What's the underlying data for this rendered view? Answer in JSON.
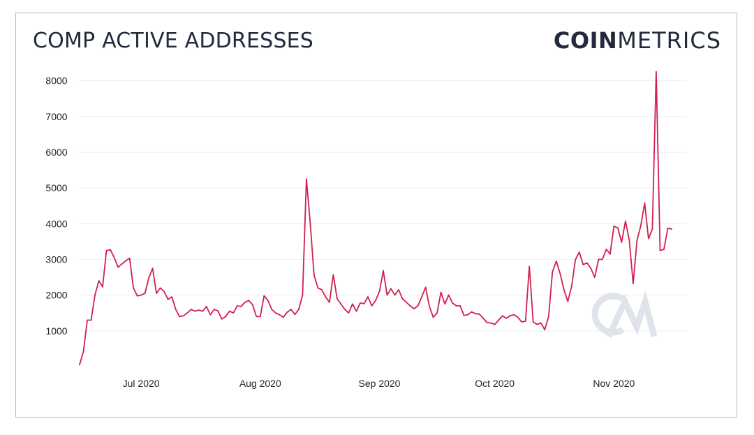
{
  "title": "COMP ACTIVE ADDRESSES",
  "brand": {
    "bold": "COIN",
    "light": "METRICS"
  },
  "watermark_icon": "cm-logo-watermark",
  "colors": {
    "line": "#d21f4e",
    "grid": "#eeeeee",
    "text": "#232a3b",
    "watermark": "#dfe3ea"
  },
  "chart_data": {
    "type": "line",
    "title": "COMP ACTIVE ADDRESSES",
    "xlabel": "",
    "ylabel": "",
    "grid": true,
    "x_start": "2020-06-15",
    "x_end": "2020-11-20",
    "ylim": [
      0,
      8500
    ],
    "y_ticks": [
      1000,
      2000,
      3000,
      4000,
      5000,
      6000,
      7000,
      8000
    ],
    "x_ticks": [
      {
        "label": "Jul 2020",
        "date": "2020-07-01"
      },
      {
        "label": "Aug 2020",
        "date": "2020-08-01"
      },
      {
        "label": "Sep 2020",
        "date": "2020-09-01"
      },
      {
        "label": "Oct 2020",
        "date": "2020-10-01"
      },
      {
        "label": "Nov 2020",
        "date": "2020-11-01"
      }
    ],
    "series": [
      {
        "name": "",
        "points": [
          [
            "2020-06-15",
            50
          ],
          [
            "2020-06-16",
            420
          ],
          [
            "2020-06-17",
            1300
          ],
          [
            "2020-06-18",
            1300
          ],
          [
            "2020-06-19",
            2000
          ],
          [
            "2020-06-20",
            2400
          ],
          [
            "2020-06-21",
            2230
          ],
          [
            "2020-06-22",
            3250
          ],
          [
            "2020-06-23",
            3270
          ],
          [
            "2020-06-24",
            3050
          ],
          [
            "2020-06-25",
            2780
          ],
          [
            "2020-06-26",
            2870
          ],
          [
            "2020-06-27",
            2960
          ],
          [
            "2020-06-28",
            3030
          ],
          [
            "2020-06-29",
            2200
          ],
          [
            "2020-06-30",
            1980
          ],
          [
            "2020-07-01",
            2000
          ],
          [
            "2020-07-02",
            2050
          ],
          [
            "2020-07-03",
            2480
          ],
          [
            "2020-07-04",
            2750
          ],
          [
            "2020-07-05",
            2050
          ],
          [
            "2020-07-06",
            2200
          ],
          [
            "2020-07-07",
            2100
          ],
          [
            "2020-07-08",
            1880
          ],
          [
            "2020-07-09",
            1950
          ],
          [
            "2020-07-10",
            1600
          ],
          [
            "2020-07-11",
            1400
          ],
          [
            "2020-07-12",
            1420
          ],
          [
            "2020-07-13",
            1500
          ],
          [
            "2020-07-14",
            1600
          ],
          [
            "2020-07-15",
            1550
          ],
          [
            "2020-07-16",
            1580
          ],
          [
            "2020-07-17",
            1550
          ],
          [
            "2020-07-18",
            1680
          ],
          [
            "2020-07-19",
            1450
          ],
          [
            "2020-07-20",
            1600
          ],
          [
            "2020-07-21",
            1560
          ],
          [
            "2020-07-22",
            1330
          ],
          [
            "2020-07-23",
            1400
          ],
          [
            "2020-07-24",
            1550
          ],
          [
            "2020-07-25",
            1500
          ],
          [
            "2020-07-26",
            1700
          ],
          [
            "2020-07-27",
            1680
          ],
          [
            "2020-07-28",
            1800
          ],
          [
            "2020-07-29",
            1850
          ],
          [
            "2020-07-30",
            1730
          ],
          [
            "2020-07-31",
            1400
          ],
          [
            "2020-08-01",
            1400
          ],
          [
            "2020-08-02",
            1980
          ],
          [
            "2020-08-03",
            1850
          ],
          [
            "2020-08-04",
            1600
          ],
          [
            "2020-08-05",
            1500
          ],
          [
            "2020-08-06",
            1450
          ],
          [
            "2020-08-07",
            1380
          ],
          [
            "2020-08-08",
            1520
          ],
          [
            "2020-08-09",
            1600
          ],
          [
            "2020-08-10",
            1460
          ],
          [
            "2020-08-11",
            1600
          ],
          [
            "2020-08-12",
            2000
          ],
          [
            "2020-08-13",
            5250
          ],
          [
            "2020-08-14",
            4000
          ],
          [
            "2020-08-15",
            2550
          ],
          [
            "2020-08-16",
            2200
          ],
          [
            "2020-08-17",
            2150
          ],
          [
            "2020-08-18",
            1950
          ],
          [
            "2020-08-19",
            1800
          ],
          [
            "2020-08-20",
            2570
          ],
          [
            "2020-08-21",
            1900
          ],
          [
            "2020-08-22",
            1750
          ],
          [
            "2020-08-23",
            1600
          ],
          [
            "2020-08-24",
            1500
          ],
          [
            "2020-08-25",
            1750
          ],
          [
            "2020-08-26",
            1550
          ],
          [
            "2020-08-27",
            1780
          ],
          [
            "2020-08-28",
            1760
          ],
          [
            "2020-08-29",
            1950
          ],
          [
            "2020-08-30",
            1700
          ],
          [
            "2020-08-31",
            1850
          ],
          [
            "2020-09-01",
            2100
          ],
          [
            "2020-09-02",
            2680
          ],
          [
            "2020-09-03",
            2000
          ],
          [
            "2020-09-04",
            2180
          ],
          [
            "2020-09-05",
            2000
          ],
          [
            "2020-09-06",
            2150
          ],
          [
            "2020-09-07",
            1900
          ],
          [
            "2020-09-08",
            1800
          ],
          [
            "2020-09-09",
            1700
          ],
          [
            "2020-09-10",
            1620
          ],
          [
            "2020-09-11",
            1700
          ],
          [
            "2020-09-12",
            1950
          ],
          [
            "2020-09-13",
            2220
          ],
          [
            "2020-09-14",
            1680
          ],
          [
            "2020-09-15",
            1380
          ],
          [
            "2020-09-16",
            1500
          ],
          [
            "2020-09-17",
            2080
          ],
          [
            "2020-09-18",
            1750
          ],
          [
            "2020-09-19",
            2000
          ],
          [
            "2020-09-20",
            1780
          ],
          [
            "2020-09-21",
            1700
          ],
          [
            "2020-09-22",
            1700
          ],
          [
            "2020-09-23",
            1430
          ],
          [
            "2020-09-24",
            1450
          ],
          [
            "2020-09-25",
            1530
          ],
          [
            "2020-09-26",
            1480
          ],
          [
            "2020-09-27",
            1470
          ],
          [
            "2020-09-28",
            1350
          ],
          [
            "2020-09-29",
            1230
          ],
          [
            "2020-09-30",
            1220
          ],
          [
            "2020-10-01",
            1180
          ],
          [
            "2020-10-02",
            1300
          ],
          [
            "2020-10-03",
            1420
          ],
          [
            "2020-10-04",
            1350
          ],
          [
            "2020-10-05",
            1420
          ],
          [
            "2020-10-06",
            1450
          ],
          [
            "2020-10-07",
            1380
          ],
          [
            "2020-10-08",
            1250
          ],
          [
            "2020-10-09",
            1270
          ],
          [
            "2020-10-10",
            2800
          ],
          [
            "2020-10-11",
            1250
          ],
          [
            "2020-10-12",
            1180
          ],
          [
            "2020-10-13",
            1220
          ],
          [
            "2020-10-14",
            1030
          ],
          [
            "2020-10-15",
            1400
          ],
          [
            "2020-10-16",
            2650
          ],
          [
            "2020-10-17",
            2950
          ],
          [
            "2020-10-18",
            2600
          ],
          [
            "2020-10-19",
            2150
          ],
          [
            "2020-10-20",
            1820
          ],
          [
            "2020-10-21",
            2250
          ],
          [
            "2020-10-22",
            3000
          ],
          [
            "2020-10-23",
            3200
          ],
          [
            "2020-10-24",
            2850
          ],
          [
            "2020-10-25",
            2900
          ],
          [
            "2020-10-26",
            2750
          ],
          [
            "2020-10-27",
            2500
          ],
          [
            "2020-10-28",
            3000
          ],
          [
            "2020-10-29",
            3000
          ],
          [
            "2020-10-30",
            3280
          ],
          [
            "2020-10-31",
            3150
          ],
          [
            "2020-11-01",
            3930
          ],
          [
            "2020-11-02",
            3880
          ],
          [
            "2020-11-03",
            3480
          ],
          [
            "2020-11-04",
            4070
          ],
          [
            "2020-11-05",
            3530
          ],
          [
            "2020-11-06",
            2320
          ],
          [
            "2020-11-07",
            3530
          ],
          [
            "2020-11-08",
            3950
          ],
          [
            "2020-11-09",
            4580
          ],
          [
            "2020-11-10",
            3580
          ],
          [
            "2020-11-11",
            3850
          ],
          [
            "2020-11-12",
            8250
          ],
          [
            "2020-11-13",
            3250
          ],
          [
            "2020-11-14",
            3280
          ],
          [
            "2020-11-15",
            3870
          ],
          [
            "2020-11-16",
            3850
          ]
        ]
      }
    ]
  }
}
